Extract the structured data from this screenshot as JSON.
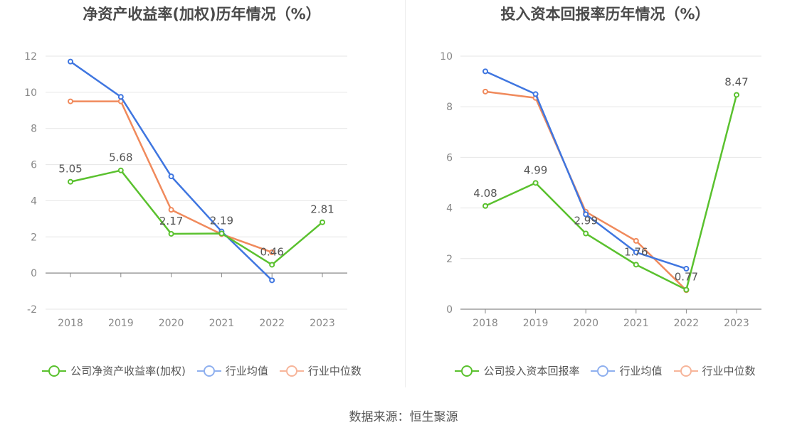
{
  "charts": [
    {
      "title": "净资产收益率(加权)历年情况（%）",
      "legend": [
        "公司净资产收益率(加权)",
        "行业均值",
        "行业中位数"
      ],
      "y_ticks": [
        "-2",
        "0",
        "2",
        "4",
        "6",
        "8",
        "10",
        "12"
      ],
      "x_ticks": [
        "2018",
        "2019",
        "2020",
        "2021",
        "2022",
        "2023"
      ]
    },
    {
      "title": "投入资本回报率历年情况（%）",
      "legend": [
        "公司投入资本回报率",
        "行业均值",
        "行业中位数"
      ],
      "y_ticks": [
        "0",
        "2",
        "4",
        "6",
        "8",
        "10"
      ],
      "x_ticks": [
        "2018",
        "2019",
        "2020",
        "2021",
        "2022",
        "2023"
      ]
    }
  ],
  "source_text": "数据来源：恒生聚源",
  "colors": {
    "company": "#5ac12e",
    "industry_avg": "#3f76e0",
    "industry_median": "#f08a5c",
    "legend_avg": "#8fb0ef",
    "legend_median": "#f7b59a"
  },
  "chart_data": [
    {
      "type": "line",
      "title": "净资产收益率(加权)历年情况（%）",
      "categories": [
        "2018",
        "2019",
        "2020",
        "2021",
        "2022",
        "2023"
      ],
      "ylim": [
        -2,
        12
      ],
      "y_step": 2,
      "grid": true,
      "legend_position": "bottom",
      "series": [
        {
          "name": "公司净资产收益率(加权)",
          "values": [
            5.05,
            5.68,
            2.17,
            2.19,
            0.46,
            2.81
          ],
          "labels": [
            "5.05",
            "5.68",
            "2.17",
            "2.19",
            "0.46",
            "2.81"
          ],
          "color": "#5ac12e"
        },
        {
          "name": "行业均值",
          "values": [
            11.7,
            9.75,
            5.35,
            2.3,
            -0.4,
            null
          ],
          "color": "#3f76e0"
        },
        {
          "name": "行业中位数",
          "values": [
            9.5,
            9.5,
            3.5,
            2.15,
            1.15,
            null
          ],
          "color": "#f08a5c"
        }
      ]
    },
    {
      "type": "line",
      "title": "投入资本回报率历年情况（%）",
      "categories": [
        "2018",
        "2019",
        "2020",
        "2021",
        "2022",
        "2023"
      ],
      "ylim": [
        0,
        10
      ],
      "y_step": 2,
      "grid": true,
      "legend_position": "bottom",
      "series": [
        {
          "name": "公司投入资本回报率",
          "values": [
            4.08,
            4.99,
            2.99,
            1.76,
            0.77,
            8.47
          ],
          "labels": [
            "4.08",
            "4.99",
            "2.99",
            "1.76",
            "0.77",
            "8.47"
          ],
          "color": "#5ac12e"
        },
        {
          "name": "行业均值",
          "values": [
            9.4,
            8.5,
            3.75,
            2.25,
            1.6,
            null
          ],
          "color": "#3f76e0"
        },
        {
          "name": "行业中位数",
          "values": [
            8.6,
            8.35,
            3.85,
            2.7,
            0.75,
            null
          ],
          "color": "#f08a5c"
        }
      ]
    }
  ]
}
